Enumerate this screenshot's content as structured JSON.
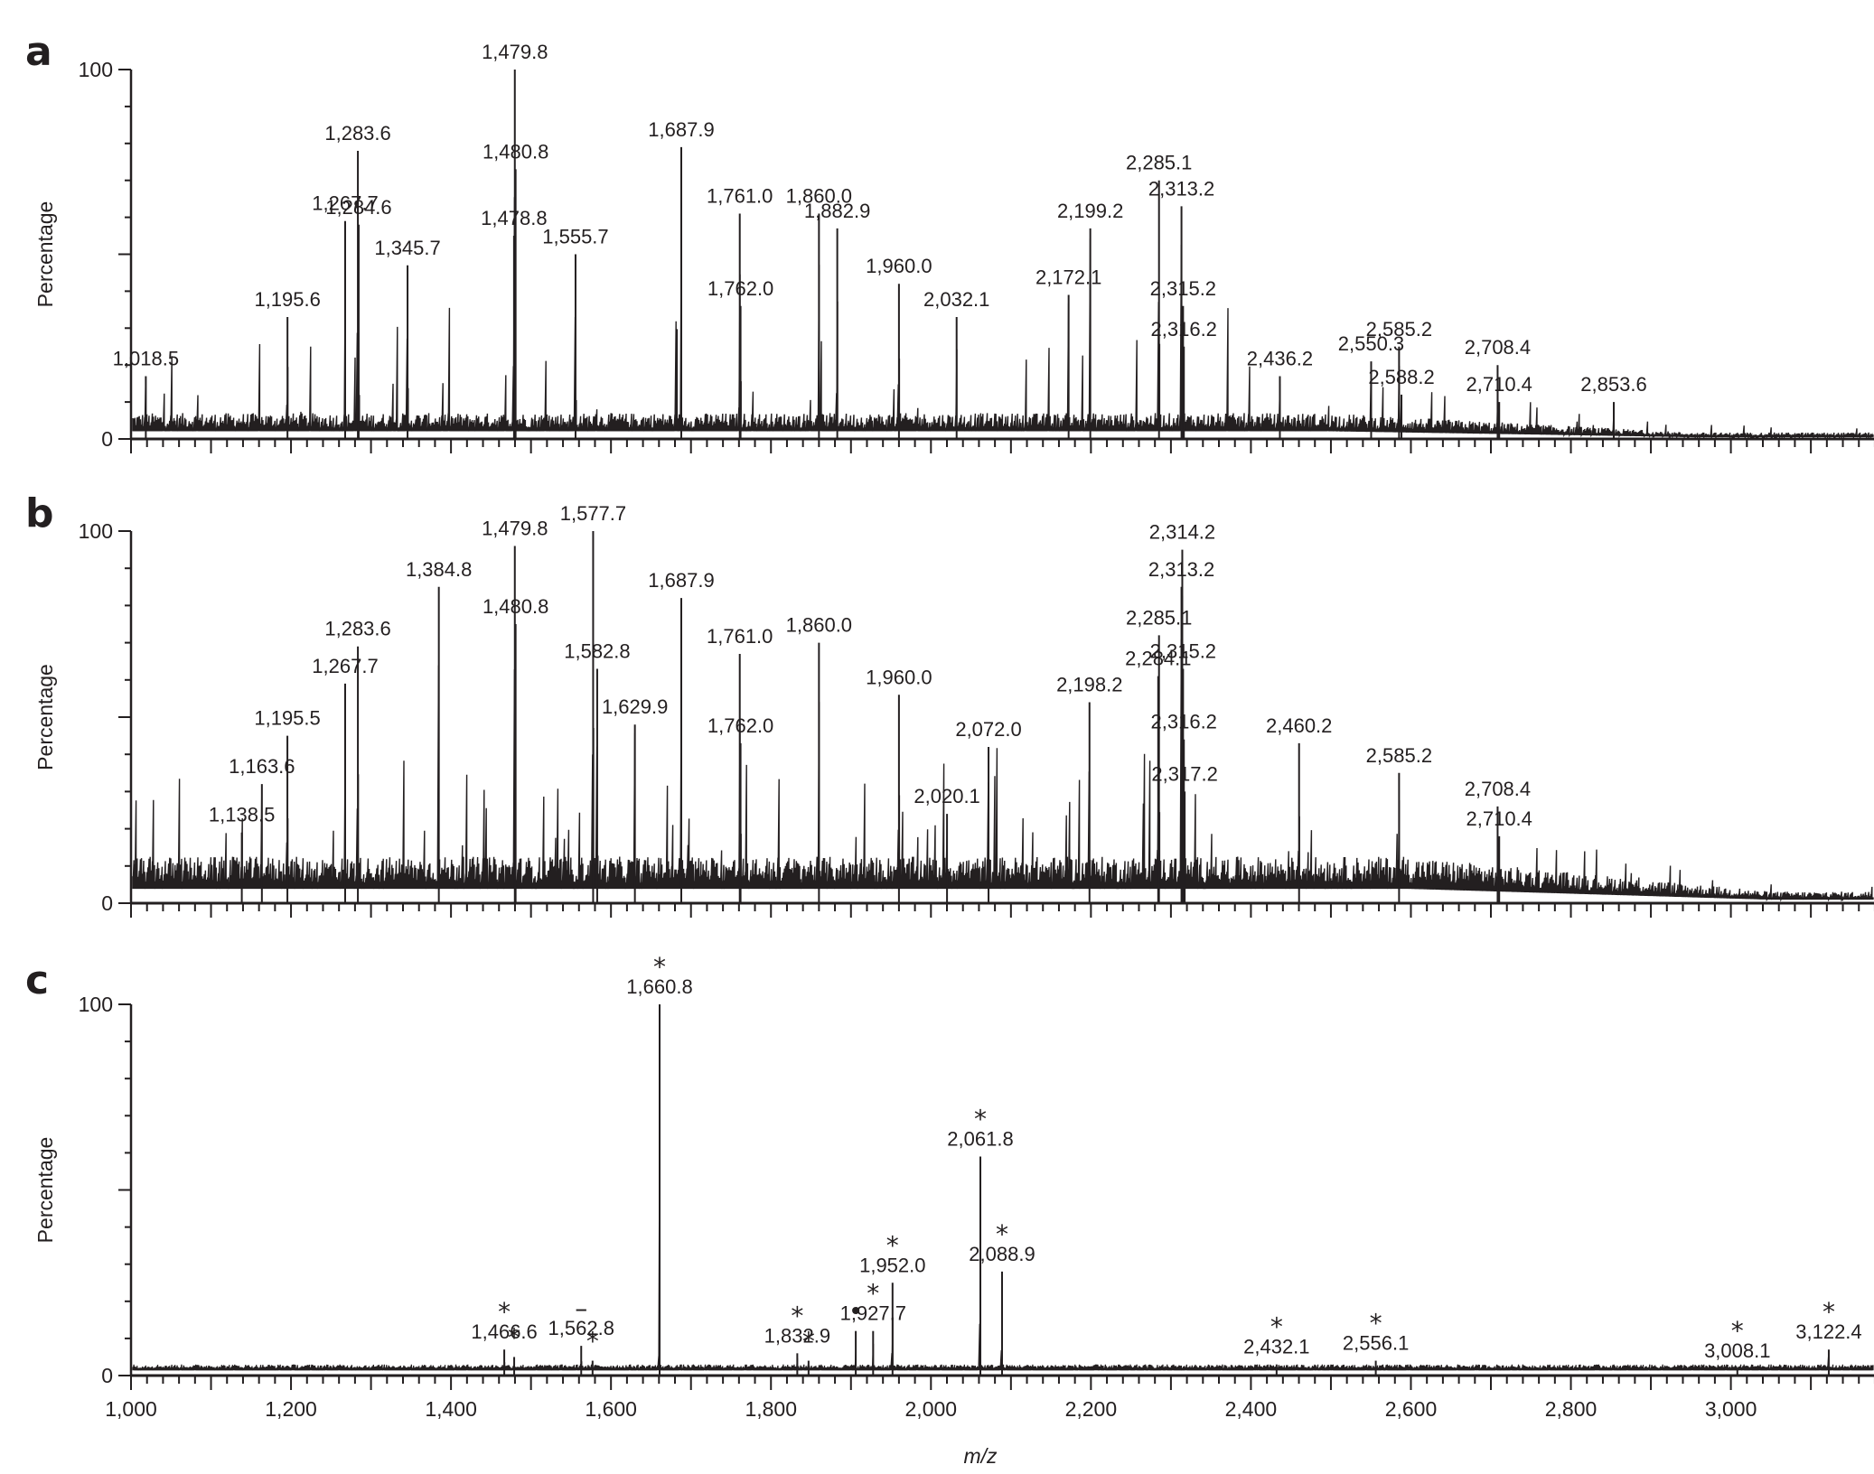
{
  "figure": {
    "panels": [
      "a",
      "b",
      "c"
    ],
    "ylabel": "Percentage",
    "xlabel": "m/z",
    "y_ticks": [
      "0",
      "100"
    ],
    "x_ticks": [
      "1,000",
      "1,200",
      "1,400",
      "1,600",
      "1,800",
      "2,000",
      "2,200",
      "2,400",
      "2,600",
      "2,800",
      "3,000"
    ],
    "legend_marks": {
      "star": "*",
      "dot": "•",
      "dash": "–"
    }
  },
  "chart_data": [
    {
      "type": "line",
      "panel": "a",
      "title": "",
      "xlabel": "m/z",
      "ylabel": "Percentage",
      "xlim": [
        1000,
        3180
      ],
      "ylim": [
        0,
        100
      ],
      "grid": false,
      "baseline": "dense noisy baseline ~3%",
      "peaks": [
        {
          "mz": 1018.5,
          "label": "1,018.5",
          "y": 17
        },
        {
          "mz": 1195.6,
          "label": "1,195.6",
          "y": 33
        },
        {
          "mz": 1267.7,
          "label": "1,267.7",
          "y": 59
        },
        {
          "mz": 1283.6,
          "label": "1,283.6",
          "y": 78
        },
        {
          "mz": 1284.6,
          "label": "1,284.6",
          "y": 58
        },
        {
          "mz": 1345.7,
          "label": "1,345.7",
          "y": 47
        },
        {
          "mz": 1478.8,
          "label": "1,478.8",
          "y": 55
        },
        {
          "mz": 1479.8,
          "label": "1,479.8",
          "y": 100
        },
        {
          "mz": 1480.8,
          "label": "1,480.8",
          "y": 73
        },
        {
          "mz": 1555.7,
          "label": "1,555.7",
          "y": 50
        },
        {
          "mz": 1687.9,
          "label": "1,687.9",
          "y": 79
        },
        {
          "mz": 1761.0,
          "label": "1,761.0",
          "y": 61
        },
        {
          "mz": 1762.0,
          "label": "1,762.0",
          "y": 36
        },
        {
          "mz": 1860.0,
          "label": "1,860.0",
          "y": 61
        },
        {
          "mz": 1882.9,
          "label": "1,882.9",
          "y": 57
        },
        {
          "mz": 1960.0,
          "label": "1,960.0",
          "y": 42
        },
        {
          "mz": 2032.1,
          "label": "2,032.1",
          "y": 33
        },
        {
          "mz": 2172.1,
          "label": "2,172.1",
          "y": 39
        },
        {
          "mz": 2199.2,
          "label": "2,199.2",
          "y": 57
        },
        {
          "mz": 2285.1,
          "label": "2,285.1",
          "y": 70
        },
        {
          "mz": 2313.2,
          "label": "2,313.2",
          "y": 63
        },
        {
          "mz": 2315.2,
          "label": "2,315.2",
          "y": 36
        },
        {
          "mz": 2316.2,
          "label": "2,316.2",
          "y": 25
        },
        {
          "mz": 2436.2,
          "label": "2,436.2",
          "y": 17
        },
        {
          "mz": 2550.3,
          "label": "2,550.3",
          "y": 21
        },
        {
          "mz": 2585.2,
          "label": "2,585.2",
          "y": 25
        },
        {
          "mz": 2588.2,
          "label": "2,588.2",
          "y": 12
        },
        {
          "mz": 2708.4,
          "label": "2,708.4",
          "y": 20
        },
        {
          "mz": 2710.4,
          "label": "2,710.4",
          "y": 10
        },
        {
          "mz": 2853.6,
          "label": "2,853.6",
          "y": 10
        }
      ]
    },
    {
      "type": "line",
      "panel": "b",
      "title": "",
      "xlabel": "m/z",
      "ylabel": "Percentage",
      "xlim": [
        1000,
        3180
      ],
      "ylim": [
        0,
        100
      ],
      "grid": false,
      "baseline": "dense noisy baseline ~5-8%",
      "peaks": [
        {
          "mz": 1138.5,
          "label": "1,138.5",
          "y": 19
        },
        {
          "mz": 1163.6,
          "label": "1,163.6",
          "y": 32
        },
        {
          "mz": 1195.5,
          "label": "1,195.5",
          "y": 45
        },
        {
          "mz": 1267.7,
          "label": "1,267.7",
          "y": 59
        },
        {
          "mz": 1283.6,
          "label": "1,283.6",
          "y": 69
        },
        {
          "mz": 1384.8,
          "label": "1,384.8",
          "y": 85
        },
        {
          "mz": 1479.8,
          "label": "1,479.8",
          "y": 96
        },
        {
          "mz": 1480.8,
          "label": "1,480.8",
          "y": 75
        },
        {
          "mz": 1577.7,
          "label": "1,577.7",
          "y": 100
        },
        {
          "mz": 1582.8,
          "label": "1,582.8",
          "y": 63
        },
        {
          "mz": 1629.9,
          "label": "1,629.9",
          "y": 48
        },
        {
          "mz": 1687.9,
          "label": "1,687.9",
          "y": 82
        },
        {
          "mz": 1761.0,
          "label": "1,761.0",
          "y": 67
        },
        {
          "mz": 1762.0,
          "label": "1,762.0",
          "y": 43
        },
        {
          "mz": 1860.0,
          "label": "1,860.0",
          "y": 70
        },
        {
          "mz": 1960.0,
          "label": "1,960.0",
          "y": 56
        },
        {
          "mz": 2020.1,
          "label": "2,020.1",
          "y": 24
        },
        {
          "mz": 2072.0,
          "label": "2,072.0",
          "y": 42
        },
        {
          "mz": 2198.2,
          "label": "2,198.2",
          "y": 54
        },
        {
          "mz": 2284.1,
          "label": "2,284.1",
          "y": 61
        },
        {
          "mz": 2285.1,
          "label": "2,285.1",
          "y": 72
        },
        {
          "mz": 2313.2,
          "label": "2,313.2",
          "y": 85
        },
        {
          "mz": 2314.2,
          "label": "2,314.2",
          "y": 95
        },
        {
          "mz": 2315.2,
          "label": "2,315.2",
          "y": 63
        },
        {
          "mz": 2316.2,
          "label": "2,316.2",
          "y": 44
        },
        {
          "mz": 2317.2,
          "label": "2,317.2",
          "y": 30
        },
        {
          "mz": 2460.2,
          "label": "2,460.2",
          "y": 43
        },
        {
          "mz": 2585.2,
          "label": "2,585.2",
          "y": 35
        },
        {
          "mz": 2708.4,
          "label": "2,708.4",
          "y": 26
        },
        {
          "mz": 2710.4,
          "label": "2,710.4",
          "y": 18
        }
      ]
    },
    {
      "type": "line",
      "panel": "c",
      "title": "",
      "xlabel": "m/z",
      "ylabel": "Percentage",
      "xlim": [
        1000,
        3180
      ],
      "ylim": [
        0,
        100
      ],
      "grid": false,
      "baseline": "low noisy baseline ~2%",
      "annotation_key": {
        "*": "asterisk-marked peak",
        "•": "dot-marked peak",
        "–": "dash-marked peak"
      },
      "peaks": [
        {
          "mz": 1466.6,
          "label": "1,466.6",
          "y": 7,
          "mark": "*"
        },
        {
          "mz": 1479.0,
          "label": "",
          "y": 5,
          "mark": "*"
        },
        {
          "mz": 1562.8,
          "label": "1,562.8",
          "y": 8,
          "mark": "–"
        },
        {
          "mz": 1577.0,
          "label": "",
          "y": 4,
          "mark": "*"
        },
        {
          "mz": 1660.8,
          "label": "1,660.8",
          "y": 100,
          "mark": "*"
        },
        {
          "mz": 1832.9,
          "label": "1,832.9",
          "y": 6,
          "mark": "*"
        },
        {
          "mz": 1847.0,
          "label": "",
          "y": 4,
          "mark": "*"
        },
        {
          "mz": 1906.0,
          "label": "",
          "y": 12,
          "mark": "•"
        },
        {
          "mz": 1927.7,
          "label": "1,927.7",
          "y": 12,
          "mark": "*"
        },
        {
          "mz": 1952.0,
          "label": "1,952.0",
          "y": 25,
          "mark": "*"
        },
        {
          "mz": 2061.8,
          "label": "2,061.8",
          "y": 59,
          "mark": "*"
        },
        {
          "mz": 2088.9,
          "label": "2,088.9",
          "y": 28,
          "mark": "*"
        },
        {
          "mz": 2432.1,
          "label": "2,432.1",
          "y": 3,
          "mark": "*"
        },
        {
          "mz": 2556.1,
          "label": "2,556.1",
          "y": 4,
          "mark": "*"
        },
        {
          "mz": 3008.1,
          "label": "3,008.1",
          "y": 2,
          "mark": "*"
        },
        {
          "mz": 3122.4,
          "label": "3,122.4",
          "y": 7,
          "mark": "*"
        }
      ]
    }
  ]
}
